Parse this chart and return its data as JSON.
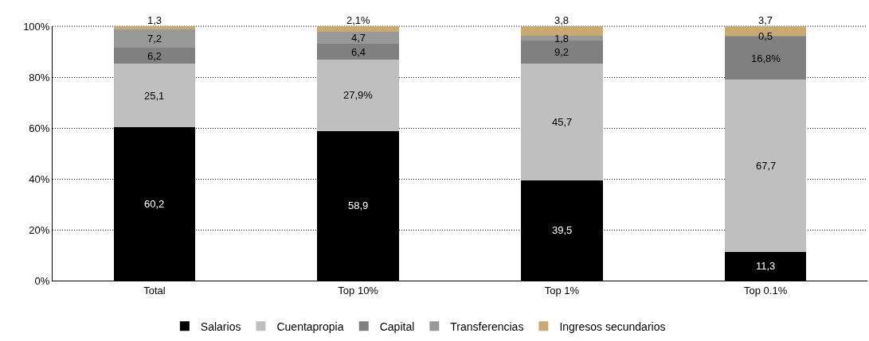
{
  "chart_data": {
    "type": "bar",
    "stacked": true,
    "categories": [
      "Total",
      "Top 10%",
      "Top 1%",
      "Top 0.1%"
    ],
    "series": [
      {
        "name": "Salarios",
        "color": "#000000",
        "values": [
          60.2,
          58.9,
          39.5,
          11.3
        ],
        "value_labels": [
          "60,2",
          "58,9",
          "39,5",
          "11,3"
        ]
      },
      {
        "name": "Cuentapropia",
        "color": "#bfbfbf",
        "values": [
          25.1,
          27.9,
          45.7,
          67.7
        ],
        "value_labels": [
          "25,1",
          "27,9%",
          "45,7",
          "67,7"
        ]
      },
      {
        "name": "Capital",
        "color": "#808080",
        "values": [
          6.2,
          6.4,
          9.2,
          16.8
        ],
        "value_labels": [
          "6,2",
          "6,4",
          "9,2",
          "16,8%"
        ]
      },
      {
        "name": "Transferencias",
        "color": "#999999",
        "values": [
          7.2,
          4.7,
          1.8,
          0.5
        ],
        "value_labels": [
          "7,2",
          "4,7",
          "1,8",
          "0,5"
        ]
      },
      {
        "name": "Ingresos secundarios",
        "color": "#c8aa72",
        "values": [
          1.3,
          2.1,
          3.8,
          3.7
        ],
        "value_labels": [
          "1,3",
          "2,1%",
          "3,8",
          "3,7"
        ]
      }
    ],
    "ylim": [
      0,
      100
    ],
    "yticks": [
      {
        "value": 0,
        "label": "0%"
      },
      {
        "value": 20,
        "label": "20%"
      },
      {
        "value": 40,
        "label": "40%"
      },
      {
        "value": 60,
        "label": "60%"
      },
      {
        "value": 80,
        "label": "80%"
      },
      {
        "value": 100,
        "label": "100%"
      }
    ],
    "grid": "y",
    "legend": "bottom"
  }
}
